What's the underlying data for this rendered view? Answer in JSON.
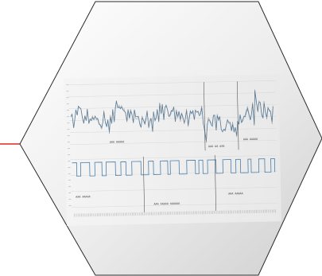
{
  "figure": {
    "frame_shape": "hexagon",
    "accent_color": "#e0271f",
    "frame_stroke_color": "#2a2a2a",
    "panel_top": {
      "labels": [
        "AAA AAAAA",
        "AAA AA AAA",
        "AAA AAAAA"
      ]
    },
    "panel_bottom": {
      "labels": [
        "AAA AAAAA",
        "AAA AAAAA AAAAAA",
        "AAA AAAAA"
      ]
    }
  }
}
